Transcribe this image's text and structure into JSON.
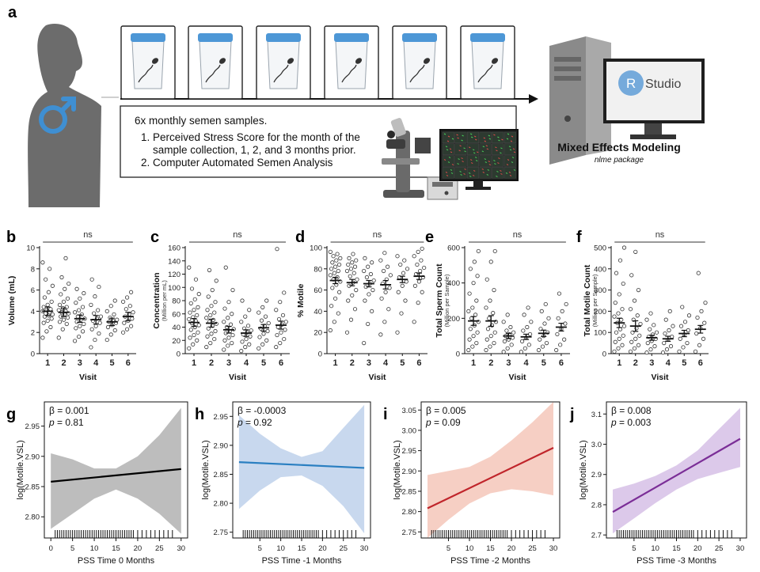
{
  "panel_a": {
    "letter": "a",
    "box_title": "6x monthly semen samples.",
    "box_items": [
      "1.  Perceived Stress Score for the month of the",
      "sample collection, 1, 2, and 3 months prior.",
      "2.  Computer Automated Semen Analysis"
    ],
    "rstudio_r": "R",
    "rstudio_label": "Studio",
    "model_title": "Mixed Effects Modeling",
    "model_sub": "nlme package",
    "colors": {
      "cup_lid": "#4d97d6",
      "male_symbol": "#3f8fd2",
      "silhouette": "#6c6c6c"
    }
  },
  "chart_data": [
    {
      "panel": "b",
      "type": "scatter",
      "xlabel": "Visit",
      "ylabel": "Volume (mL)",
      "ylabel_sub": "",
      "categories": [
        "1",
        "2",
        "3",
        "4",
        "5",
        "6"
      ],
      "ylim": [
        0,
        10
      ],
      "yticks": [
        0,
        2,
        4,
        6,
        8,
        10
      ],
      "annotation": "ns",
      "mean": [
        4.0,
        3.9,
        3.3,
        3.2,
        3.0,
        3.5
      ],
      "sem": [
        0.4,
        0.4,
        0.35,
        0.4,
        0.35,
        0.4
      ],
      "points": [
        [
          1.5,
          2.1,
          2.5,
          2.9,
          3.1,
          3.3,
          3.5,
          3.6,
          3.7,
          3.8,
          3.9,
          4.0,
          4.1,
          4.2,
          4.4,
          4.6,
          4.9,
          5.3,
          5.8,
          6.4,
          7.0,
          8.0,
          8.6
        ],
        [
          1.5,
          2.3,
          2.8,
          3.0,
          3.2,
          3.4,
          3.5,
          3.7,
          3.8,
          3.9,
          4.0,
          4.1,
          4.3,
          4.4,
          4.6,
          4.9,
          5.2,
          5.6,
          6.1,
          6.6,
          7.2,
          9.0
        ],
        [
          1.2,
          1.6,
          2.1,
          2.4,
          2.6,
          2.8,
          3.0,
          3.2,
          3.3,
          3.5,
          3.7,
          3.9,
          4.1,
          4.4,
          4.8,
          5.2,
          5.7,
          6.1
        ],
        [
          0.6,
          1.3,
          1.9,
          2.3,
          2.6,
          2.9,
          3.1,
          3.3,
          3.5,
          3.8,
          4.1,
          4.6,
          5.4,
          6.3,
          7.0
        ],
        [
          1.3,
          1.8,
          2.2,
          2.5,
          2.7,
          2.9,
          3.0,
          3.1,
          3.2,
          3.4,
          3.7,
          4.0,
          4.5,
          5.0
        ],
        [
          2.0,
          2.3,
          2.6,
          2.9,
          3.1,
          3.3,
          3.5,
          3.7,
          3.9,
          4.2,
          4.5,
          4.9,
          5.3,
          5.8
        ]
      ]
    },
    {
      "panel": "c",
      "type": "scatter",
      "xlabel": "Visit",
      "ylabel": "Concentration",
      "ylabel_sub": "(Million per mL)",
      "categories": [
        "1",
        "2",
        "3",
        "4",
        "5",
        "6"
      ],
      "ylim": [
        0,
        160
      ],
      "yticks": [
        0,
        20,
        40,
        60,
        80,
        100,
        120,
        140,
        160
      ],
      "annotation": "ns",
      "mean": [
        47,
        46,
        36,
        31,
        39,
        43
      ],
      "sem": [
        6,
        6,
        5,
        5,
        5,
        6
      ],
      "points": [
        [
          8,
          14,
          20,
          24,
          28,
          32,
          36,
          40,
          43,
          46,
          49,
          52,
          55,
          58,
          62,
          66,
          70,
          76,
          82,
          90,
          98,
          112,
          130
        ],
        [
          10,
          16,
          22,
          26,
          30,
          34,
          38,
          42,
          45,
          48,
          51,
          54,
          58,
          62,
          66,
          72,
          78,
          86,
          96,
          110,
          126
        ],
        [
          6,
          12,
          16,
          20,
          24,
          28,
          31,
          34,
          37,
          40,
          44,
          48,
          54,
          60,
          68,
          78,
          96,
          130
        ],
        [
          4,
          10,
          14,
          18,
          22,
          26,
          29,
          32,
          35,
          38,
          42,
          48,
          56,
          66,
          80
        ],
        [
          8,
          14,
          20,
          25,
          30,
          34,
          38,
          42,
          46,
          50,
          56,
          62,
          70,
          80
        ],
        [
          10,
          16,
          22,
          28,
          32,
          36,
          40,
          44,
          48,
          52,
          58,
          66,
          78,
          92,
          158
        ]
      ]
    },
    {
      "panel": "d",
      "type": "scatter",
      "xlabel": "Visit",
      "ylabel": "% Motile",
      "ylabel_sub": "",
      "categories": [
        "1",
        "2",
        "3",
        "4",
        "5",
        "6"
      ],
      "ylim": [
        0,
        100
      ],
      "yticks": [
        0,
        20,
        40,
        60,
        80,
        100
      ],
      "annotation": "ns",
      "mean": [
        69,
        67,
        66,
        65,
        70,
        73
      ],
      "sem": [
        3,
        3,
        3,
        4,
        3,
        3
      ],
      "points": [
        [
          22,
          30,
          38,
          45,
          52,
          58,
          62,
          65,
          68,
          70,
          72,
          74,
          76,
          78,
          80,
          82,
          84,
          86,
          88,
          90,
          92,
          94,
          96
        ],
        [
          20,
          32,
          42,
          50,
          55,
          60,
          64,
          67,
          70,
          73,
          76,
          78,
          80,
          82,
          84,
          86,
          88,
          90,
          94
        ],
        [
          10,
          28,
          40,
          50,
          56,
          60,
          63,
          66,
          69,
          72,
          75,
          78,
          82,
          86,
          90
        ],
        [
          18,
          30,
          42,
          52,
          58,
          62,
          66,
          70,
          74,
          78,
          82,
          88,
          95
        ],
        [
          20,
          38,
          50,
          58,
          64,
          68,
          72,
          76,
          80,
          84,
          88,
          92
        ],
        [
          30,
          48,
          58,
          64,
          68,
          72,
          75,
          78,
          81,
          84,
          88,
          92,
          96,
          99
        ]
      ]
    },
    {
      "panel": "e",
      "type": "scatter",
      "xlabel": "Visit",
      "ylabel": "Total Sperm Count",
      "ylabel_sub": "(Million per Sample)",
      "categories": [
        "1",
        "2",
        "3",
        "4",
        "5",
        "6"
      ],
      "ylim": [
        0,
        600
      ],
      "yticks": [
        0,
        200,
        400,
        600
      ],
      "annotation": "ns",
      "mean": [
        185,
        185,
        100,
        95,
        115,
        150
      ],
      "sem": [
        25,
        30,
        15,
        15,
        18,
        22
      ],
      "points": [
        [
          20,
          40,
          60,
          80,
          100,
          120,
          140,
          160,
          180,
          200,
          220,
          240,
          260,
          300,
          340,
          400,
          440,
          480,
          520,
          580
        ],
        [
          20,
          40,
          60,
          80,
          100,
          120,
          140,
          160,
          180,
          200,
          230,
          260,
          300,
          360,
          420,
          520,
          580
        ],
        [
          10,
          30,
          50,
          70,
          80,
          90,
          100,
          110,
          120,
          130,
          150,
          180,
          220
        ],
        [
          10,
          30,
          50,
          70,
          90,
          110,
          130,
          150,
          180,
          220,
          260
        ],
        [
          20,
          40,
          60,
          80,
          100,
          120,
          140,
          170,
          200,
          240,
          280
        ],
        [
          20,
          50,
          80,
          110,
          140,
          170,
          200,
          240,
          280,
          340
        ]
      ]
    },
    {
      "panel": "f",
      "type": "scatter",
      "xlabel": "Visit",
      "ylabel": "Total Motile Count",
      "ylabel_sub": "(Million per Sample)",
      "categories": [
        "1",
        "2",
        "3",
        "4",
        "5",
        "6"
      ],
      "ylim": [
        0,
        500
      ],
      "yticks": [
        0,
        100,
        200,
        300,
        400,
        500
      ],
      "annotation": "ns",
      "mean": [
        145,
        130,
        75,
        70,
        95,
        115
      ],
      "sem": [
        22,
        25,
        12,
        12,
        15,
        18
      ],
      "points": [
        [
          10,
          25,
          40,
          55,
          70,
          85,
          100,
          115,
          130,
          145,
          160,
          175,
          190,
          210,
          240,
          280,
          330,
          380,
          440,
          500
        ],
        [
          10,
          25,
          40,
          55,
          70,
          85,
          100,
          120,
          140,
          160,
          180,
          210,
          250,
          300,
          370,
          480
        ],
        [
          5,
          20,
          35,
          50,
          60,
          70,
          80,
          90,
          100,
          115,
          135,
          160,
          190
        ],
        [
          5,
          20,
          35,
          50,
          65,
          80,
          95,
          110,
          130,
          160,
          200
        ],
        [
          10,
          30,
          50,
          70,
          90,
          110,
          130,
          150,
          180,
          220
        ],
        [
          10,
          40,
          70,
          95,
          120,
          145,
          170,
          200,
          240,
          380
        ]
      ]
    },
    {
      "panel": "g",
      "type": "line",
      "xlabel": "PSS Time 0 Months",
      "ylabel": "log(Motile.VSL)",
      "beta": "β = 0.001",
      "p_label": "p",
      "p_value": " = 0.81",
      "xlim": [
        -1.5,
        31.5
      ],
      "xticks": [
        0,
        5,
        10,
        15,
        20,
        25,
        30
      ],
      "ylim": [
        2.765,
        2.99
      ],
      "yticks": [
        2.8,
        2.85,
        2.9,
        2.95
      ],
      "fit_x": [
        0,
        30
      ],
      "fit_y": [
        2.858,
        2.879
      ],
      "ci_x": [
        0,
        5,
        10,
        15,
        20,
        25,
        30
      ],
      "ci_low": [
        2.78,
        2.805,
        2.83,
        2.845,
        2.83,
        2.805,
        2.772
      ],
      "ci_high": [
        2.905,
        2.895,
        2.88,
        2.88,
        2.9,
        2.935,
        2.98
      ],
      "line_color": "#000000",
      "band_color": "#bdbdbd",
      "rug": [
        1,
        1.5,
        2,
        2.5,
        3,
        3.5,
        4,
        4.5,
        5,
        5.5,
        6,
        6.5,
        7,
        7.5,
        8,
        8.5,
        9,
        9.5,
        10,
        10.5,
        11,
        11.5,
        12,
        12.5,
        13,
        13.5,
        14,
        14.5,
        15,
        15.5,
        16,
        16.5,
        17,
        17.5,
        18,
        18.5,
        19,
        20,
        21,
        22,
        23,
        24,
        25,
        26,
        27,
        28
      ]
    },
    {
      "panel": "h",
      "type": "line",
      "xlabel": "PSS Time -1 Months",
      "ylabel": "log(Motile.VSL)",
      "beta": "β = -0.0003",
      "p_label": "p",
      "p_value": " = 0.92",
      "xlim": [
        -1.5,
        31.5
      ],
      "xticks": [
        5,
        10,
        15,
        20,
        25,
        30
      ],
      "ylim": [
        2.74,
        2.975
      ],
      "yticks": [
        2.75,
        2.8,
        2.85,
        2.9,
        2.95
      ],
      "fit_x": [
        0,
        30
      ],
      "fit_y": [
        2.871,
        2.861
      ],
      "ci_x": [
        0,
        5,
        10,
        15,
        20,
        25,
        30
      ],
      "ci_low": [
        2.79,
        2.822,
        2.845,
        2.848,
        2.83,
        2.795,
        2.748
      ],
      "ci_high": [
        2.952,
        2.92,
        2.895,
        2.88,
        2.89,
        2.93,
        2.97
      ],
      "line_color": "#2a7fc1",
      "band_color": "#c8d8ee",
      "rug": [
        1,
        1.5,
        2,
        2.5,
        3,
        3.5,
        4,
        4.5,
        5,
        5.5,
        6,
        6.5,
        7,
        7.5,
        8,
        8.5,
        9,
        9.5,
        10,
        10.5,
        11,
        11.5,
        12,
        12.5,
        13,
        13.5,
        14,
        14.5,
        15,
        15.5,
        16,
        16.5,
        17,
        17.5,
        18,
        18.5,
        19,
        20,
        21,
        22,
        23,
        24,
        25,
        26,
        27,
        28
      ]
    },
    {
      "panel": "i",
      "type": "line",
      "xlabel": "PSS Time -2 Months",
      "ylabel": "log(Motile.VSL)",
      "beta": "β = 0.005",
      "p_label": "p",
      "p_value": " = 0.09",
      "xlim": [
        -1.5,
        31.5
      ],
      "xticks": [
        5,
        10,
        15,
        20,
        25,
        30
      ],
      "ylim": [
        2.735,
        3.07
      ],
      "yticks": [
        2.75,
        2.8,
        2.85,
        2.9,
        2.95,
        3.0,
        3.05
      ],
      "fit_x": [
        0,
        30
      ],
      "fit_y": [
        2.808,
        2.957
      ],
      "ci_x": [
        0,
        5,
        10,
        15,
        20,
        25,
        30
      ],
      "ci_low": [
        2.735,
        2.78,
        2.82,
        2.845,
        2.855,
        2.85,
        2.84
      ],
      "ci_high": [
        2.89,
        2.9,
        2.91,
        2.935,
        2.975,
        3.02,
        3.07
      ],
      "line_color": "#c0252b",
      "band_color": "#f6cfc4",
      "rug": [
        1,
        1.5,
        2,
        2.5,
        3,
        3.5,
        4,
        4.5,
        5,
        5.5,
        6,
        6.5,
        7,
        7.5,
        8,
        8.5,
        9,
        9.5,
        10,
        10.5,
        11,
        11.5,
        12,
        12.5,
        13,
        13.5,
        14,
        14.5,
        15,
        15.5,
        16,
        16.5,
        17,
        17.5,
        18,
        18.5,
        19,
        20,
        21,
        22,
        23,
        24,
        25,
        26,
        27,
        28
      ]
    },
    {
      "panel": "j",
      "type": "line",
      "xlabel": "PSS Time -3 Months",
      "ylabel": "log(Motile.VSL)",
      "beta": "β = 0.008",
      "p_label": "p",
      "p_value": " = 0.003",
      "xlim": [
        -1.5,
        31.5
      ],
      "xticks": [
        5,
        10,
        15,
        20,
        25,
        30
      ],
      "ylim": [
        2.69,
        3.14
      ],
      "yticks": [
        2.7,
        2.8,
        2.9,
        3.0,
        3.1
      ],
      "fit_x": [
        0,
        30
      ],
      "fit_y": [
        2.776,
        3.018
      ],
      "ci_x": [
        0,
        5,
        10,
        15,
        20,
        25,
        30
      ],
      "ci_low": [
        2.705,
        2.755,
        2.805,
        2.85,
        2.885,
        2.905,
        2.925
      ],
      "ci_high": [
        2.85,
        2.87,
        2.895,
        2.93,
        2.98,
        3.05,
        3.12
      ],
      "line_color": "#7b2e97",
      "band_color": "#dcc9ea",
      "rug": [
        1,
        1.5,
        2,
        2.5,
        3,
        3.5,
        4,
        4.5,
        5,
        5.5,
        6,
        6.5,
        7,
        7.5,
        8,
        8.5,
        9,
        9.5,
        10,
        10.5,
        11,
        11.5,
        12,
        12.5,
        13,
        13.5,
        14,
        14.5,
        15,
        15.5,
        16,
        16.5,
        17,
        17.5,
        18,
        18.5,
        19,
        20,
        21,
        22,
        23,
        24,
        25,
        26,
        27,
        28
      ]
    }
  ]
}
